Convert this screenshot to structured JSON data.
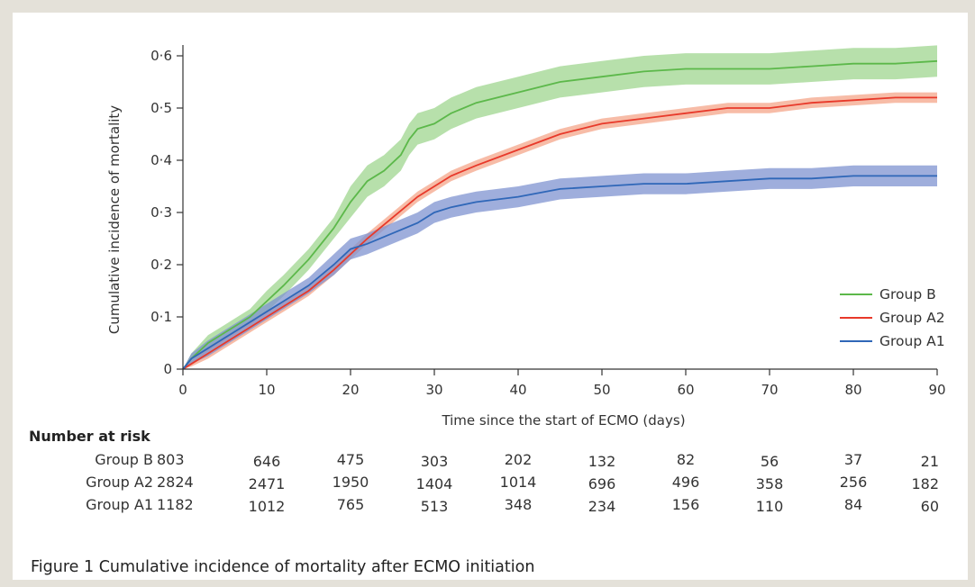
{
  "caption": "Figure 1 Cumulative incidence of mortality after ECMO initiation",
  "chart_data": {
    "type": "line",
    "xlabel": "Time since the start of ECMO (days)",
    "ylabel": "Cumulative incidence of mortality",
    "xlim": [
      0,
      90
    ],
    "ylim": [
      0,
      0.6
    ],
    "x_ticks": [
      0,
      10,
      20,
      30,
      40,
      50,
      60,
      70,
      80,
      90
    ],
    "x_tick_labels": [
      "0",
      "10",
      "20",
      "30",
      "40",
      "50",
      "60",
      "70",
      "80",
      "90"
    ],
    "y_ticks": [
      0,
      0.1,
      0.2,
      0.3,
      0.4,
      0.5,
      0.6
    ],
    "y_tick_labels": [
      "0",
      "0·1",
      "0·2",
      "0·3",
      "0·4",
      "0·5",
      "0·6"
    ],
    "grid": false,
    "legend_position": "bottom-right",
    "confidence_bands": true,
    "series": [
      {
        "name": "Group B",
        "color": "#5cb84a",
        "band_color": "#9fd68f",
        "x": [
          0,
          1,
          3,
          5,
          8,
          10,
          12,
          15,
          18,
          20,
          22,
          24,
          26,
          27,
          28,
          30,
          32,
          35,
          40,
          45,
          50,
          55,
          60,
          65,
          70,
          75,
          80,
          85,
          90
        ],
        "y": [
          0,
          0.02,
          0.05,
          0.07,
          0.1,
          0.13,
          0.16,
          0.21,
          0.27,
          0.32,
          0.36,
          0.38,
          0.41,
          0.44,
          0.46,
          0.47,
          0.49,
          0.51,
          0.53,
          0.55,
          0.56,
          0.57,
          0.575,
          0.575,
          0.575,
          0.58,
          0.585,
          0.585,
          0.59
        ],
        "lower": [
          0,
          0.01,
          0.035,
          0.055,
          0.085,
          0.11,
          0.14,
          0.19,
          0.25,
          0.29,
          0.33,
          0.35,
          0.38,
          0.41,
          0.43,
          0.44,
          0.46,
          0.48,
          0.5,
          0.52,
          0.53,
          0.54,
          0.545,
          0.545,
          0.545,
          0.55,
          0.555,
          0.555,
          0.56
        ],
        "upper": [
          0,
          0.03,
          0.065,
          0.085,
          0.115,
          0.15,
          0.18,
          0.23,
          0.29,
          0.35,
          0.39,
          0.41,
          0.44,
          0.47,
          0.49,
          0.5,
          0.52,
          0.54,
          0.56,
          0.58,
          0.59,
          0.6,
          0.605,
          0.605,
          0.605,
          0.61,
          0.615,
          0.615,
          0.62
        ]
      },
      {
        "name": "Group A2",
        "color": "#e8392a",
        "band_color": "#f4a58a",
        "x": [
          0,
          1,
          3,
          5,
          8,
          10,
          12,
          15,
          18,
          20,
          22,
          25,
          28,
          30,
          32,
          35,
          40,
          45,
          50,
          55,
          60,
          65,
          70,
          75,
          80,
          85,
          90
        ],
        "y": [
          0,
          0.01,
          0.03,
          0.05,
          0.08,
          0.1,
          0.12,
          0.15,
          0.19,
          0.22,
          0.25,
          0.29,
          0.33,
          0.35,
          0.37,
          0.39,
          0.42,
          0.45,
          0.47,
          0.48,
          0.49,
          0.5,
          0.5,
          0.51,
          0.515,
          0.52,
          0.52
        ],
        "lower": [
          0,
          0.005,
          0.02,
          0.04,
          0.07,
          0.09,
          0.11,
          0.14,
          0.18,
          0.21,
          0.24,
          0.28,
          0.32,
          0.34,
          0.36,
          0.38,
          0.41,
          0.44,
          0.46,
          0.47,
          0.48,
          0.49,
          0.49,
          0.5,
          0.505,
          0.51,
          0.51
        ],
        "upper": [
          0,
          0.015,
          0.04,
          0.06,
          0.09,
          0.11,
          0.13,
          0.16,
          0.2,
          0.23,
          0.26,
          0.3,
          0.34,
          0.36,
          0.38,
          0.4,
          0.43,
          0.46,
          0.48,
          0.49,
          0.5,
          0.51,
          0.51,
          0.52,
          0.525,
          0.53,
          0.53
        ]
      },
      {
        "name": "Group A1",
        "color": "#2f67b8",
        "band_color": "#7f93d0",
        "x": [
          0,
          1,
          3,
          5,
          8,
          10,
          12,
          15,
          18,
          20,
          22,
          25,
          28,
          30,
          32,
          35,
          40,
          45,
          50,
          55,
          60,
          65,
          70,
          75,
          80,
          85,
          90
        ],
        "y": [
          0,
          0.02,
          0.04,
          0.06,
          0.09,
          0.11,
          0.13,
          0.16,
          0.2,
          0.23,
          0.24,
          0.26,
          0.28,
          0.3,
          0.31,
          0.32,
          0.33,
          0.345,
          0.35,
          0.355,
          0.355,
          0.36,
          0.365,
          0.365,
          0.37,
          0.37,
          0.37
        ],
        "lower": [
          0,
          0.01,
          0.025,
          0.045,
          0.075,
          0.095,
          0.115,
          0.145,
          0.18,
          0.21,
          0.22,
          0.24,
          0.26,
          0.28,
          0.29,
          0.3,
          0.31,
          0.325,
          0.33,
          0.335,
          0.335,
          0.34,
          0.345,
          0.345,
          0.35,
          0.35,
          0.35
        ],
        "upper": [
          0,
          0.03,
          0.055,
          0.075,
          0.105,
          0.125,
          0.145,
          0.175,
          0.22,
          0.25,
          0.26,
          0.28,
          0.3,
          0.32,
          0.33,
          0.34,
          0.35,
          0.365,
          0.37,
          0.375,
          0.375,
          0.38,
          0.385,
          0.385,
          0.39,
          0.39,
          0.39
        ]
      }
    ]
  },
  "risk_table": {
    "title": "Number at risk",
    "times": [
      0,
      10,
      20,
      30,
      40,
      50,
      60,
      70,
      80,
      90
    ],
    "rows": [
      {
        "label": "Group B",
        "values": [
          "803",
          "646",
          "475",
          "303",
          "202",
          "132",
          "82",
          "56",
          "37",
          "21"
        ]
      },
      {
        "label": "Group A2",
        "values": [
          "2824",
          "2471",
          "1950",
          "1404",
          "1014",
          "696",
          "496",
          "358",
          "256",
          "182"
        ]
      },
      {
        "label": "Group A1",
        "values": [
          "1182",
          "1012",
          "765",
          "513",
          "348",
          "234",
          "156",
          "110",
          "84",
          "60"
        ]
      }
    ]
  }
}
